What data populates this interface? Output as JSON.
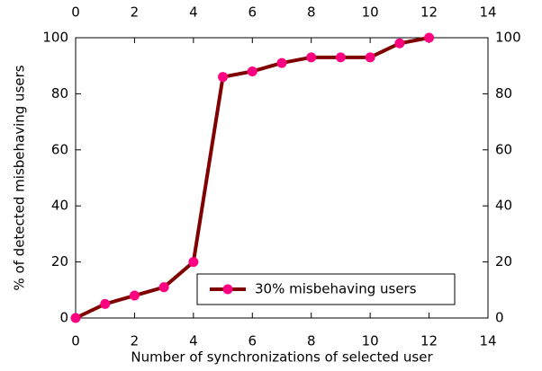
{
  "chart_data": {
    "type": "line",
    "xlabel": "Number of synchronizations of selected user",
    "ylabel": "% of detected misbehaving users",
    "x": [
      0,
      1,
      2,
      3,
      4,
      5,
      6,
      7,
      8,
      9,
      10,
      11,
      12
    ],
    "series": [
      {
        "name": "30% misbehaving users",
        "color": "#800000",
        "marker_color": "#ff0080",
        "values": [
          0,
          5,
          8,
          11,
          20,
          86,
          88,
          91,
          93,
          93,
          93,
          98,
          100
        ]
      }
    ],
    "xlim": [
      0,
      14
    ],
    "xticks": [
      0,
      2,
      4,
      6,
      8,
      10,
      12,
      14
    ],
    "ylim": [
      0,
      100
    ],
    "yticks": [
      0,
      20,
      40,
      60,
      80,
      100
    ],
    "legend": "lower right"
  }
}
